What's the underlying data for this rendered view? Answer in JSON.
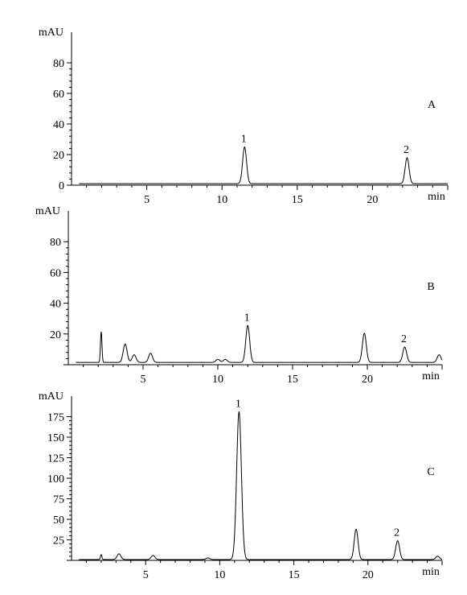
{
  "chart_data": [
    {
      "type": "line",
      "panel_label": "A",
      "ylabel": "mAU",
      "xlabel": "min",
      "xlim": [
        0,
        25
      ],
      "ylim": [
        0,
        100
      ],
      "x_ticks": [
        "5",
        "10",
        "15",
        "20"
      ],
      "y_ticks": [
        "0",
        "20",
        "40",
        "60",
        "80"
      ],
      "baseline": 1,
      "peaks": [
        {
          "label": "1",
          "rt": 11.5,
          "height": 24
        },
        {
          "label": "2",
          "rt": 22.3,
          "height": 17
        }
      ],
      "minor_peaks": []
    },
    {
      "type": "line",
      "panel_label": "B",
      "ylabel": "mAU",
      "xlabel": "min",
      "xlim": [
        0,
        25
      ],
      "ylim": [
        0,
        100
      ],
      "x_ticks": [
        "5",
        "10",
        "15",
        "20"
      ],
      "y_ticks": [
        "20",
        "40",
        "60",
        "80"
      ],
      "baseline": 1.5,
      "peaks": [
        {
          "label": "1",
          "rt": 12.0,
          "height": 24
        },
        {
          "label": "2",
          "rt": 22.5,
          "height": 10
        }
      ],
      "minor_peaks": [
        {
          "rt": 2.2,
          "height": 20
        },
        {
          "rt": 3.8,
          "height": 12
        },
        {
          "rt": 4.4,
          "height": 5
        },
        {
          "rt": 5.5,
          "height": 6
        },
        {
          "rt": 10.0,
          "height": 2
        },
        {
          "rt": 10.5,
          "height": 2
        },
        {
          "rt": 19.8,
          "height": 19
        },
        {
          "rt": 24.8,
          "height": 5
        }
      ]
    },
    {
      "type": "line",
      "panel_label": "C",
      "ylabel": "mAU",
      "xlabel": "min",
      "xlim": [
        0,
        25
      ],
      "ylim": [
        0,
        200
      ],
      "x_ticks": [
        "5",
        "10",
        "15",
        "20"
      ],
      "y_ticks": [
        "25",
        "50",
        "75",
        "100",
        "125",
        "150",
        "175"
      ],
      "baseline": 1,
      "peaks": [
        {
          "label": "1",
          "rt": 11.3,
          "height": 180
        },
        {
          "label": "2",
          "rt": 22.0,
          "height": 23
        }
      ],
      "minor_peaks": [
        {
          "rt": 2.0,
          "height": 6
        },
        {
          "rt": 3.2,
          "height": 7
        },
        {
          "rt": 5.5,
          "height": 5
        },
        {
          "rt": 9.2,
          "height": 2
        },
        {
          "rt": 19.2,
          "height": 37
        },
        {
          "rt": 24.7,
          "height": 4
        }
      ]
    }
  ]
}
